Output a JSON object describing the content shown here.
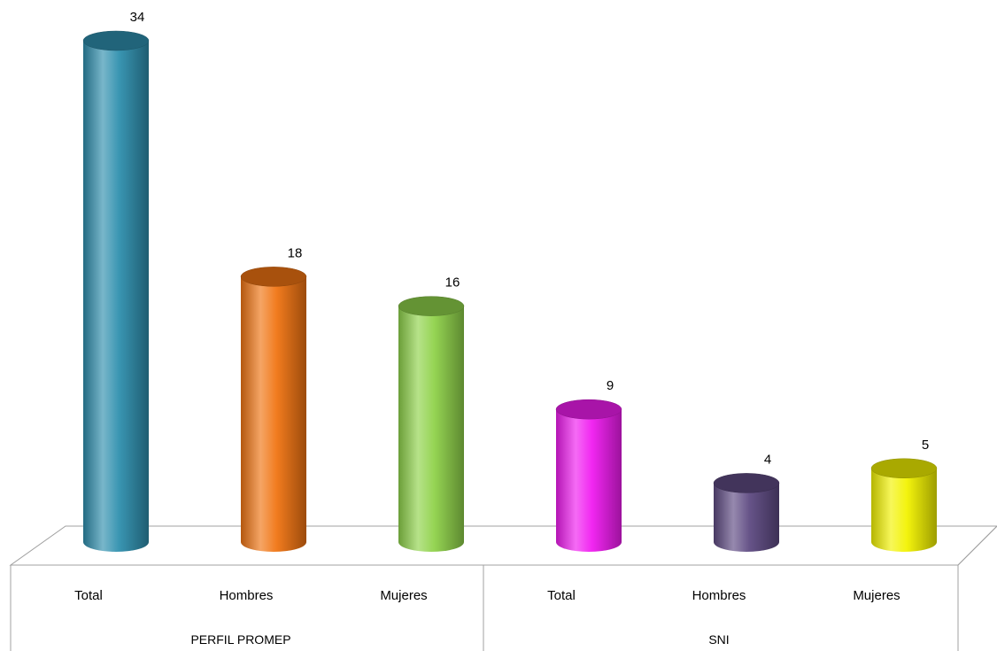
{
  "chart_data": {
    "type": "bar",
    "style": "3d-cylinder",
    "groups": [
      {
        "label": "PERFIL PROMEP",
        "categories": [
          "Total",
          "Hombres",
          "Mujeres"
        ]
      },
      {
        "label": "SNI",
        "categories": [
          "Total",
          "Hombres",
          "Mujeres"
        ]
      }
    ],
    "categories": [
      "Total",
      "Hombres",
      "Mujeres",
      "Total",
      "Hombres",
      "Mujeres"
    ],
    "values": [
      34,
      18,
      16,
      9,
      4,
      5
    ],
    "colors": [
      "#2f8fae",
      "#f07412",
      "#8fd24a",
      "#f01cf0",
      "#5e4a82",
      "#f2f200"
    ],
    "ylim": [
      0,
      34
    ],
    "grid": false,
    "legend": "none",
    "data_labels": true
  }
}
